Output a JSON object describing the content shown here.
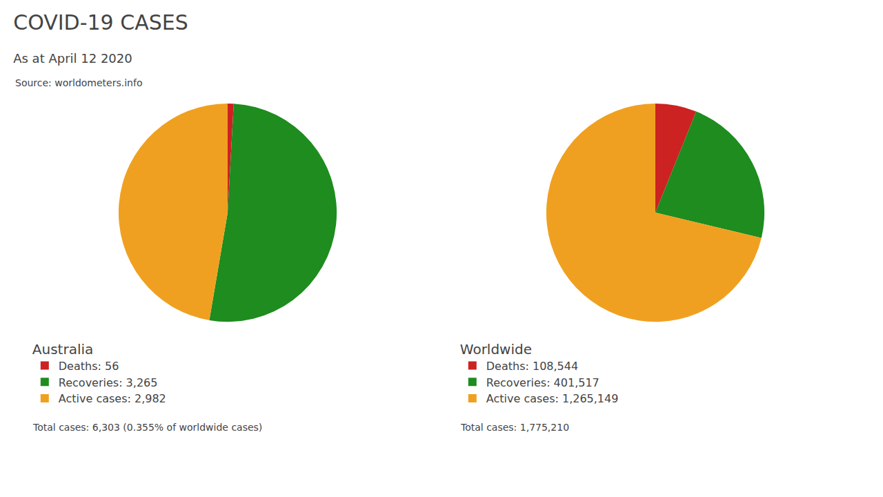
{
  "title": "COVID-19 CASES",
  "subtitle": "As at April 12 2020",
  "annotations": [
    "Source: worldometers.info"
  ],
  "chart_data": [
    {
      "type": "pie",
      "title": "Australia",
      "categories": [
        "Deaths: 56",
        "Recoveries: 3,265",
        "Active cases: 2,982"
      ],
      "values": [
        56,
        3265,
        2982
      ],
      "colors": [
        "#cc2222",
        "#1e8c1e",
        "#f0a020"
      ],
      "legend": "bottom",
      "annotations": [
        "Total cases: 6,303 (0.355% of worldwide cases)"
      ]
    },
    {
      "type": "pie",
      "title": "Worldwide",
      "categories": [
        "Deaths: 108,544",
        "Recoveries: 401,517",
        "Active cases: 1,265,149"
      ],
      "values": [
        108544,
        401517,
        1265149
      ],
      "colors": [
        "#cc2222",
        "#1e8c1e",
        "#f0a020"
      ],
      "legend": "bottom",
      "annotations": [
        "Total cases: 1,775,210"
      ]
    }
  ]
}
